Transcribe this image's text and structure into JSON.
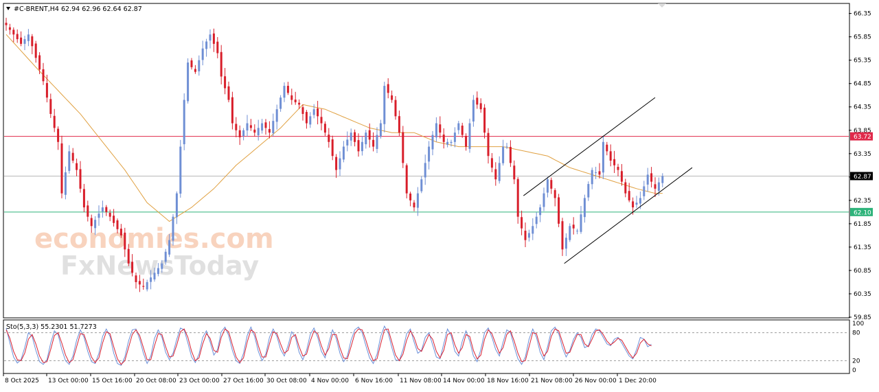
{
  "header": {
    "symbol_label": "#C-BRENT,H4",
    "ohlc": "62.94 62.96 62.64 62.87"
  },
  "stoch_header": "Sto(5,3,3) 55.2301 51.7273",
  "watermark": {
    "line1": "economies.com",
    "line2": "FxNewsToday"
  },
  "price_tags": {
    "resistance": {
      "label": "63.72",
      "value": 63.72,
      "color": "#e0294a"
    },
    "current": {
      "label": "62.87",
      "value": 62.87,
      "color": "#000000"
    },
    "support": {
      "label": "62.10",
      "value": 62.1,
      "color": "#2eb37a"
    }
  },
  "colors": {
    "bull": "#6f8fd4",
    "bear": "#d81e2a",
    "ma": "#e0a040",
    "stoch_main": "#6a8fd8",
    "stoch_signal": "#d82030",
    "grid": "#9a9a9a"
  },
  "chart_data": [
    {
      "type": "candlestick",
      "title": "#C-BRENT,H4",
      "ylim": [
        59.85,
        66.55
      ],
      "y_ticks": [
        "66.35",
        "65.85",
        "65.35",
        "64.85",
        "64.35",
        "63.85",
        "63.35",
        "62.85",
        "62.35",
        "61.85",
        "61.35",
        "60.85",
        "60.35",
        "59.85"
      ],
      "x_ticks": [
        "8 Oct 2025",
        "13 Oct 00:00",
        "15 Oct 16:00",
        "20 Oct 08:00",
        "23 Oct 00:00",
        "27 Oct 16:00",
        "30 Oct 08:00",
        "4 Nov 00:00",
        "6 Nov 16:00",
        "11 Nov 08:00",
        "14 Nov 00:00",
        "18 Nov 16:00",
        "21 Nov 08:00",
        "26 Nov 00:00",
        "1 Dec 20:00"
      ],
      "close_path": [
        [
          0,
          66.1
        ],
        [
          4,
          65.7
        ],
        [
          6,
          65.9
        ],
        [
          8,
          65.4
        ],
        [
          10,
          64.9
        ],
        [
          12,
          64.2
        ],
        [
          14,
          63.6
        ],
        [
          15,
          62.5
        ],
        [
          17,
          63.4
        ],
        [
          19,
          63.0
        ],
        [
          21,
          62.2
        ],
        [
          23,
          61.8
        ],
        [
          26,
          62.2
        ],
        [
          28,
          62.0
        ],
        [
          31,
          61.6
        ],
        [
          33,
          61.0
        ],
        [
          35,
          60.6
        ],
        [
          37,
          60.5
        ],
        [
          40,
          60.8
        ],
        [
          42,
          61.0
        ],
        [
          44,
          61.5
        ],
        [
          46,
          62.5
        ],
        [
          47,
          63.5
        ],
        [
          48,
          64.5
        ],
        [
          49,
          65.3
        ],
        [
          51,
          65.1
        ],
        [
          53,
          65.6
        ],
        [
          55,
          65.9
        ],
        [
          57,
          65.5
        ],
        [
          58,
          65.0
        ],
        [
          60,
          64.5
        ],
        [
          61,
          64.0
        ],
        [
          63,
          63.7
        ],
        [
          65,
          64.0
        ],
        [
          67,
          63.8
        ],
        [
          69,
          64.0
        ],
        [
          71,
          63.8
        ],
        [
          73,
          64.3
        ],
        [
          75,
          64.8
        ],
        [
          77,
          64.5
        ],
        [
          79,
          64.4
        ],
        [
          81,
          64.0
        ],
        [
          83,
          64.3
        ],
        [
          85,
          64.0
        ],
        [
          87,
          63.6
        ],
        [
          89,
          63.0
        ],
        [
          91,
          63.5
        ],
        [
          93,
          63.8
        ],
        [
          95,
          63.4
        ],
        [
          97,
          63.8
        ],
        [
          99,
          63.5
        ],
        [
          101,
          64.0
        ],
        [
          102,
          64.8
        ],
        [
          104,
          64.5
        ],
        [
          106,
          63.8
        ],
        [
          108,
          62.5
        ],
        [
          110,
          62.2
        ],
        [
          112,
          62.8
        ],
        [
          114,
          63.5
        ],
        [
          116,
          64.0
        ],
        [
          118,
          63.6
        ],
        [
          120,
          63.6
        ],
        [
          122,
          64.0
        ],
        [
          124,
          63.5
        ],
        [
          126,
          64.5
        ],
        [
          128,
          64.3
        ],
        [
          130,
          63.3
        ],
        [
          132,
          62.8
        ],
        [
          134,
          63.5
        ],
        [
          135,
          63.5
        ],
        [
          137,
          62.8
        ],
        [
          138,
          62.0
        ],
        [
          140,
          61.5
        ],
        [
          142,
          61.8
        ],
        [
          144,
          62.2
        ],
        [
          146,
          62.8
        ],
        [
          148,
          62.4
        ],
        [
          150,
          61.3
        ],
        [
          152,
          61.8
        ],
        [
          154,
          61.7
        ],
        [
          156,
          62.4
        ],
        [
          158,
          63.0
        ],
        [
          160,
          62.9
        ],
        [
          161,
          63.6
        ],
        [
          163,
          63.2
        ],
        [
          165,
          63.0
        ],
        [
          167,
          62.5
        ],
        [
          169,
          62.2
        ],
        [
          171,
          62.4
        ],
        [
          173,
          62.9
        ],
        [
          175,
          62.6
        ],
        [
          177,
          62.87
        ]
      ],
      "channel_lower": [
        [
          150.5,
          61.0
        ],
        [
          185,
          63.05
        ]
      ],
      "channel_upper": [
        [
          139.5,
          62.45
        ],
        [
          175,
          64.55
        ]
      ],
      "series": [
        {
          "name": "",
          "kind": "moving-average",
          "path": [
            [
              0,
              65.9
            ],
            [
              8,
              65.2
            ],
            [
              14,
              64.7
            ],
            [
              20,
              64.2
            ],
            [
              26,
              63.6
            ],
            [
              32,
              63.0
            ],
            [
              38,
              62.3
            ],
            [
              44,
              61.9
            ],
            [
              50,
              62.2
            ],
            [
              56,
              62.6
            ],
            [
              62,
              63.1
            ],
            [
              68,
              63.5
            ],
            [
              74,
              63.9
            ],
            [
              80,
              64.4
            ],
            [
              86,
              64.3
            ],
            [
              92,
              64.1
            ],
            [
              98,
              63.9
            ],
            [
              104,
              63.8
            ],
            [
              110,
              63.8
            ],
            [
              116,
              63.6
            ],
            [
              122,
              63.5
            ],
            [
              128,
              63.5
            ],
            [
              134,
              63.5
            ],
            [
              140,
              63.4
            ],
            [
              146,
              63.3
            ],
            [
              152,
              63.05
            ],
            [
              158,
              62.9
            ],
            [
              164,
              62.75
            ],
            [
              170,
              62.6
            ],
            [
              175,
              62.5
            ]
          ]
        }
      ]
    },
    {
      "type": "line",
      "title": "Sto(5,3,3) 55.2301 51.7273",
      "ylim": [
        0,
        100
      ],
      "y_ticks": [
        "100",
        "80",
        "20",
        "0"
      ],
      "levels": [
        80,
        20
      ],
      "series": [
        {
          "name": "",
          "values": [
            90,
            58,
            28,
            15,
            22,
            48,
            80,
            72,
            42,
            18,
            12,
            22,
            58,
            84,
            76,
            44,
            20,
            12,
            30,
            64,
            86,
            70,
            40,
            18,
            14,
            36,
            72,
            88,
            72,
            36,
            14,
            10,
            28,
            62,
            86,
            88,
            66,
            36,
            14,
            30,
            68,
            86,
            70,
            38,
            22,
            36,
            66,
            90,
            86,
            58,
            28,
            16,
            34,
            70,
            84,
            60,
            32,
            44,
            82,
            92,
            74,
            42,
            20,
            14,
            36,
            74,
            92,
            72,
            40,
            20,
            34,
            70,
            88,
            72,
            44,
            30,
            52,
            82,
            70,
            38,
            22,
            42,
            76,
            90,
            70,
            40,
            26,
            58,
            86,
            68,
            36,
            18,
            30,
            64,
            86,
            92,
            80,
            52,
            26,
            14,
            34,
            72,
            94,
            80,
            48,
            22,
            20,
            44,
            78,
            88,
            60,
            36,
            42,
            70,
            80,
            54,
            28,
            24,
            56,
            88,
            74,
            40,
            30,
            62,
            84,
            62,
            30,
            18,
            44,
            80,
            90,
            70,
            44,
            30,
            60,
            86,
            80,
            50,
            24,
            12,
            28,
            66,
            88,
            70,
            38,
            22,
            50,
            84,
            92,
            78,
            48,
            28,
            42,
            66,
            80,
            70,
            48,
            52,
            76,
            88,
            84,
            70,
            56,
            52,
            66,
            70,
            58,
            44,
            30,
            24,
            44,
            70,
            66,
            50,
            55
          ]
        },
        {
          "name": "",
          "values": [
            86,
            68,
            40,
            22,
            20,
            36,
            66,
            76,
            56,
            30,
            16,
            18,
            44,
            74,
            80,
            58,
            32,
            16,
            22,
            50,
            78,
            76,
            52,
            28,
            16,
            26,
            58,
            82,
            78,
            50,
            24,
            12,
            20,
            48,
            76,
            86,
            74,
            48,
            22,
            22,
            52,
            78,
            76,
            50,
            28,
            30,
            54,
            82,
            88,
            70,
            40,
            20,
            26,
            56,
            78,
            68,
            42,
            38,
            70,
            88,
            82,
            54,
            28,
            16,
            26,
            60,
            86,
            80,
            52,
            28,
            28,
            56,
            82,
            78,
            56,
            36,
            42,
            70,
            76,
            50,
            30,
            34,
            62,
            84,
            78,
            52,
            32,
            46,
            76,
            76,
            48,
            26,
            24,
            50,
            78,
            88,
            86,
            64,
            38,
            20,
            24,
            56,
            86,
            88,
            60,
            32,
            20,
            34,
            64,
            84,
            70,
            46,
            40,
            58,
            76,
            66,
            40,
            26,
            42,
            76,
            80,
            54,
            36,
            48,
            76,
            72,
            42,
            24,
            32,
            66,
            86,
            78,
            56,
            36,
            48,
            76,
            84,
            62,
            36,
            18,
            20,
            50,
            80,
            78,
            50,
            30,
            40,
            72,
            88,
            84,
            60,
            36,
            38,
            58,
            76,
            76,
            56,
            50,
            66,
            84,
            86,
            76,
            62,
            54,
            60,
            68,
            64,
            50,
            36,
            26,
            36,
            58,
            66,
            56,
            51.7
          ]
        }
      ]
    }
  ]
}
